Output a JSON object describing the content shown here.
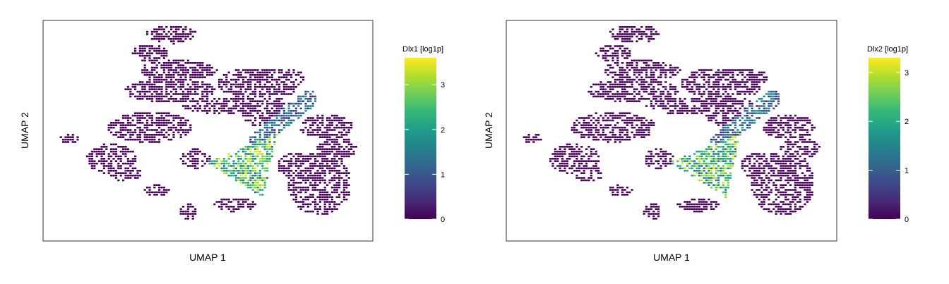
{
  "colormap": [
    "#440154",
    "#482878",
    "#3e4989",
    "#31688e",
    "#26828e",
    "#1f9e89",
    "#35b779",
    "#6ece58",
    "#b5de2b",
    "#fde725"
  ],
  "background_color": "#ffffff",
  "chart_data": [
    {
      "type": "hexbin-embedding",
      "xlabel": "UMAP 1",
      "ylabel": "UMAP 2",
      "legend_title": "Dlx1 [log1p]",
      "color_range": [
        0,
        3.6
      ],
      "colorbar_ticks": [
        0,
        1,
        2,
        3
      ],
      "legend_position": "right",
      "grid": false,
      "axis_ticks_shown": false,
      "expression_hotspot": "central-lower region (wedge of interneuron-like cells)",
      "max_value_approx": 3.6
    },
    {
      "type": "hexbin-embedding",
      "xlabel": "UMAP 1",
      "ylabel": "UMAP 2",
      "legend_title": "Dlx2 [log1p]",
      "color_range": [
        0,
        3.3
      ],
      "colorbar_ticks": [
        0,
        1,
        2,
        3
      ],
      "legend_position": "right",
      "grid": false,
      "axis_ticks_shown": false,
      "expression_hotspot": "central-lower region (wedge of interneuron-like cells)",
      "max_value_approx": 3.3
    }
  ]
}
